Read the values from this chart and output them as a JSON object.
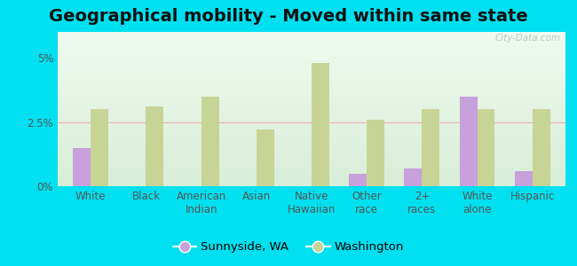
{
  "title": "Geographical mobility - Moved within same state",
  "categories": [
    "White",
    "Black",
    "American\nIndian",
    "Asian",
    "Native\nHawaiian",
    "Other\nrace",
    "2+\nraces",
    "White\nalone",
    "Hispanic"
  ],
  "sunnyside_values": [
    1.5,
    0.0,
    0.0,
    0.0,
    0.0,
    0.5,
    0.7,
    3.5,
    0.6
  ],
  "washington_values": [
    3.0,
    3.1,
    3.5,
    2.2,
    4.8,
    2.6,
    3.0,
    3.0,
    3.0
  ],
  "sunnyside_color": "#c8a0dc",
  "washington_color": "#c8d496",
  "ylim": [
    0,
    6.0
  ],
  "ytick_vals": [
    0,
    2.5,
    5.0
  ],
  "ytick_labels": [
    "0%",
    "2.5%",
    "5%"
  ],
  "background_outer": "#00e0f0",
  "background_inner": "#e8f5e0",
  "legend_sunnyside": "Sunnyside, WA",
  "legend_washington": "Washington",
  "watermark": "City-Data.com",
  "bar_width": 0.32,
  "title_fontsize": 14,
  "axis_fontsize": 8.5,
  "legend_fontsize": 9.5
}
